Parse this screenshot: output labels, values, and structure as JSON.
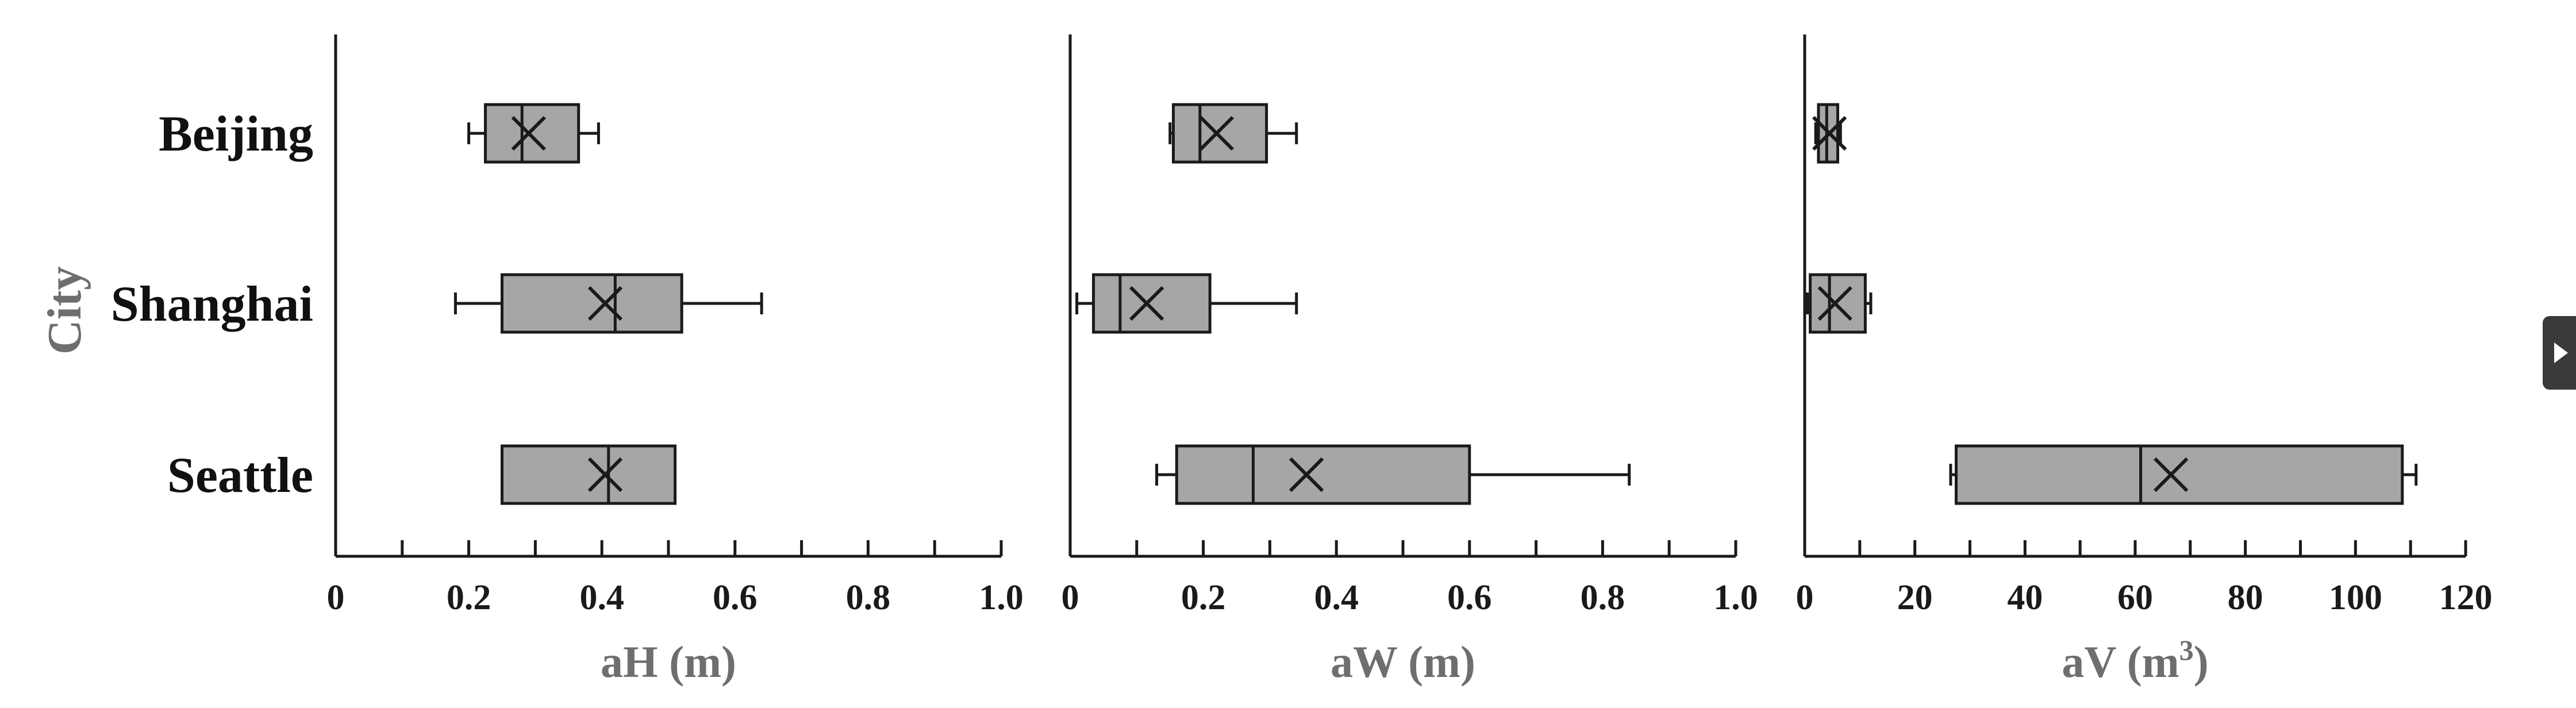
{
  "chart_data": {
    "type": "box",
    "y_title": "City",
    "categories": [
      "Beijing",
      "Shanghai",
      "Seattle"
    ],
    "colors": {
      "box_fill": "#a6a6a6",
      "stroke": "#1a1a1a",
      "axis_title": "#6e6e6e"
    },
    "panels": [
      {
        "xlabel": "aH (m)",
        "xlim": [
          0,
          1.0
        ],
        "ticks": [
          "0",
          "0.2",
          "0.4",
          "0.6",
          "0.8",
          "1.0"
        ],
        "tick_values": [
          0,
          0.2,
          0.4,
          0.6,
          0.8,
          1.0
        ],
        "minor_tick_values": [
          0.1,
          0.3,
          0.5,
          0.7,
          0.9
        ],
        "boxes": [
          {
            "city": "Beijing",
            "min": 0.2,
            "q1": 0.225,
            "median": 0.28,
            "q3": 0.365,
            "max": 0.395,
            "mean": 0.29
          },
          {
            "city": "Shanghai",
            "min": 0.18,
            "q1": 0.25,
            "median": 0.42,
            "q3": 0.52,
            "max": 0.64,
            "mean": 0.405
          },
          {
            "city": "Seattle",
            "min": 0.25,
            "q1": 0.25,
            "median": 0.41,
            "q3": 0.51,
            "max": 0.51,
            "mean": 0.405
          }
        ]
      },
      {
        "xlabel": "aW (m)",
        "xlim": [
          0,
          1.0
        ],
        "ticks": [
          "0",
          "0.2",
          "0.4",
          "0.6",
          "0.8",
          "1.0"
        ],
        "tick_values": [
          0,
          0.2,
          0.4,
          0.6,
          0.8,
          1.0
        ],
        "minor_tick_values": [
          0.1,
          0.3,
          0.5,
          0.7,
          0.9
        ],
        "boxes": [
          {
            "city": "Beijing",
            "min": 0.15,
            "q1": 0.155,
            "median": 0.195,
            "q3": 0.295,
            "max": 0.34,
            "mean": 0.22
          },
          {
            "city": "Shanghai",
            "min": 0.01,
            "q1": 0.035,
            "median": 0.075,
            "q3": 0.21,
            "max": 0.34,
            "mean": 0.115
          },
          {
            "city": "Seattle",
            "min": 0.13,
            "q1": 0.16,
            "median": 0.275,
            "q3": 0.6,
            "max": 0.84,
            "mean": 0.355
          }
        ]
      },
      {
        "xlabel": "aV (m",
        "xlabel_sup": "3",
        "xlabel_tail": ")",
        "xlim": [
          0,
          120
        ],
        "ticks": [
          "0",
          "20",
          "40",
          "60",
          "80",
          "100",
          "120"
        ],
        "tick_values": [
          0,
          20,
          40,
          60,
          80,
          100,
          120
        ],
        "minor_tick_values": [
          10,
          30,
          50,
          70,
          90,
          110
        ],
        "boxes": [
          {
            "city": "Beijing",
            "min": 2,
            "q1": 2.5,
            "median": 4,
            "q3": 6,
            "max": 6.5,
            "mean": 4.5
          },
          {
            "city": "Shanghai",
            "min": 0.5,
            "q1": 1,
            "median": 4.5,
            "q3": 11,
            "max": 12,
            "mean": 5.5
          },
          {
            "city": "Seattle",
            "min": 26.5,
            "q1": 27.5,
            "median": 61,
            "q3": 108.5,
            "max": 111,
            "mean": 66.5
          }
        ]
      }
    ]
  }
}
